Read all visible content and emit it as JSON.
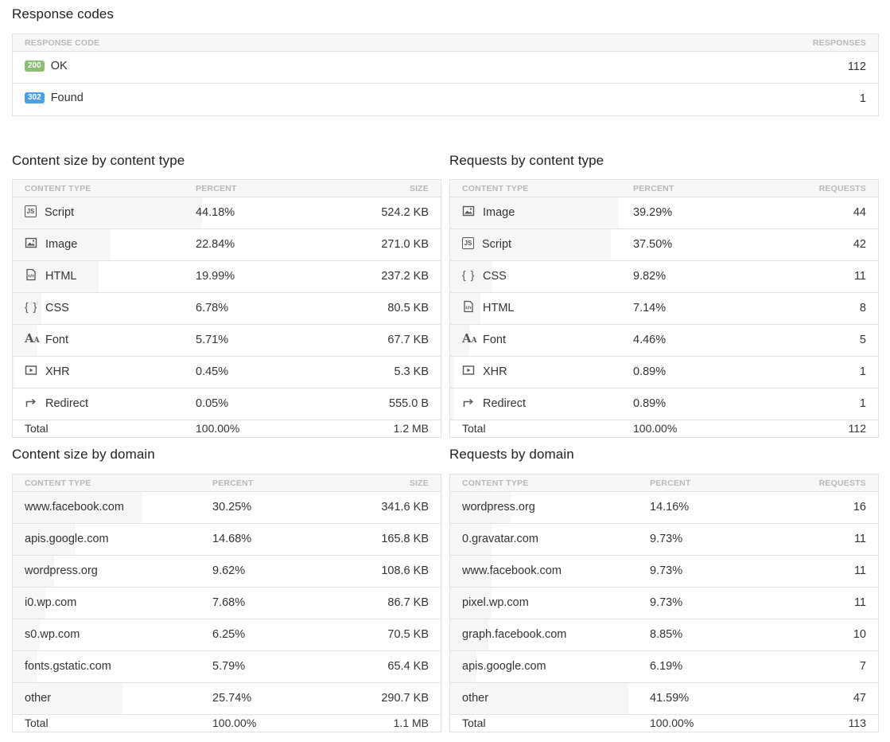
{
  "response_codes": {
    "title": "Response codes",
    "headers": {
      "code": "RESPONSE CODE",
      "responses": "RESPONSES"
    },
    "rows": [
      {
        "code": "200",
        "label": "OK",
        "responses": "112",
        "color": "#8dbf72"
      },
      {
        "code": "302",
        "label": "Found",
        "responses": "1",
        "color": "#4a9fe6"
      }
    ]
  },
  "size_by_type": {
    "title": "Content size by content type",
    "headers": {
      "type": "CONTENT TYPE",
      "percent": "PERCENT",
      "value": "SIZE"
    },
    "rows": [
      {
        "icon": "script-icon",
        "label": "Script",
        "percent": "44.18%",
        "value": "524.2 KB",
        "fraction": 0.4418
      },
      {
        "icon": "image-icon",
        "label": "Image",
        "percent": "22.84%",
        "value": "271.0 KB",
        "fraction": 0.2284
      },
      {
        "icon": "html-icon",
        "label": "HTML",
        "percent": "19.99%",
        "value": "237.2 KB",
        "fraction": 0.1999
      },
      {
        "icon": "css-icon",
        "label": "CSS",
        "percent": "6.78%",
        "value": "80.5 KB",
        "fraction": 0.0678
      },
      {
        "icon": "font-icon",
        "label": "Font",
        "percent": "5.71%",
        "value": "67.7 KB",
        "fraction": 0.0571
      },
      {
        "icon": "xhr-icon",
        "label": "XHR",
        "percent": "0.45%",
        "value": "5.3 KB",
        "fraction": 0.0045
      },
      {
        "icon": "redirect-icon",
        "label": "Redirect",
        "percent": "0.05%",
        "value": "555.0 B",
        "fraction": 0.0005
      }
    ],
    "total": {
      "label": "Total",
      "percent": "100.00%",
      "value": "1.2 MB"
    }
  },
  "requests_by_type": {
    "title": "Requests by content type",
    "headers": {
      "type": "CONTENT TYPE",
      "percent": "PERCENT",
      "value": "REQUESTS"
    },
    "rows": [
      {
        "icon": "image-icon",
        "label": "Image",
        "percent": "39.29%",
        "value": "44",
        "fraction": 0.3929
      },
      {
        "icon": "script-icon",
        "label": "Script",
        "percent": "37.50%",
        "value": "42",
        "fraction": 0.375
      },
      {
        "icon": "css-icon",
        "label": "CSS",
        "percent": "9.82%",
        "value": "11",
        "fraction": 0.0982
      },
      {
        "icon": "html-icon",
        "label": "HTML",
        "percent": "7.14%",
        "value": "8",
        "fraction": 0.0714
      },
      {
        "icon": "font-icon",
        "label": "Font",
        "percent": "4.46%",
        "value": "5",
        "fraction": 0.0446
      },
      {
        "icon": "xhr-icon",
        "label": "XHR",
        "percent": "0.89%",
        "value": "1",
        "fraction": 0.0089
      },
      {
        "icon": "redirect-icon",
        "label": "Redirect",
        "percent": "0.89%",
        "value": "1",
        "fraction": 0.0089
      }
    ],
    "total": {
      "label": "Total",
      "percent": "100.00%",
      "value": "112"
    }
  },
  "size_by_domain": {
    "title": "Content size by domain",
    "headers": {
      "type": "CONTENT TYPE",
      "percent": "PERCENT",
      "value": "SIZE"
    },
    "rows": [
      {
        "label": "www.facebook.com",
        "percent": "30.25%",
        "value": "341.6 KB",
        "fraction": 0.3025
      },
      {
        "label": "apis.google.com",
        "percent": "14.68%",
        "value": "165.8 KB",
        "fraction": 0.1468
      },
      {
        "label": "wordpress.org",
        "percent": "9.62%",
        "value": "108.6 KB",
        "fraction": 0.0962
      },
      {
        "label": "i0.wp.com",
        "percent": "7.68%",
        "value": "86.7 KB",
        "fraction": 0.0768
      },
      {
        "label": "s0.wp.com",
        "percent": "6.25%",
        "value": "70.5 KB",
        "fraction": 0.0625
      },
      {
        "label": "fonts.gstatic.com",
        "percent": "5.79%",
        "value": "65.4 KB",
        "fraction": 0.0579
      },
      {
        "label": "other",
        "percent": "25.74%",
        "value": "290.7 KB",
        "fraction": 0.2574
      }
    ],
    "total": {
      "label": "Total",
      "percent": "100.00%",
      "value": "1.1 MB"
    }
  },
  "requests_by_domain": {
    "title": "Requests by domain",
    "headers": {
      "type": "CONTENT TYPE",
      "percent": "PERCENT",
      "value": "REQUESTS"
    },
    "rows": [
      {
        "label": "wordpress.org",
        "percent": "14.16%",
        "value": "16",
        "fraction": 0.1416
      },
      {
        "label": "0.gravatar.com",
        "percent": "9.73%",
        "value": "11",
        "fraction": 0.0973
      },
      {
        "label": "www.facebook.com",
        "percent": "9.73%",
        "value": "11",
        "fraction": 0.0973
      },
      {
        "label": "pixel.wp.com",
        "percent": "9.73%",
        "value": "11",
        "fraction": 0.0973
      },
      {
        "label": "graph.facebook.com",
        "percent": "8.85%",
        "value": "10",
        "fraction": 0.0885
      },
      {
        "label": "apis.google.com",
        "percent": "6.19%",
        "value": "7",
        "fraction": 0.0619
      },
      {
        "label": "other",
        "percent": "41.59%",
        "value": "47",
        "fraction": 0.4159
      }
    ],
    "total": {
      "label": "Total",
      "percent": "100.00%",
      "value": "113"
    }
  }
}
